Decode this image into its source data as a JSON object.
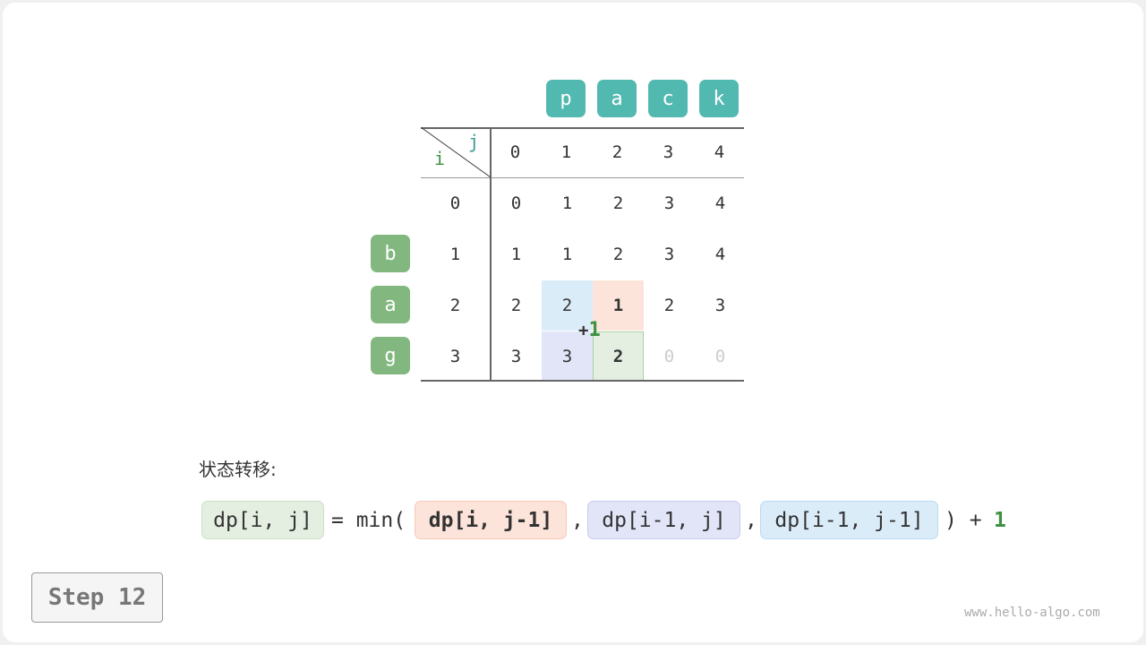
{
  "columns_string": [
    "p",
    "a",
    "c",
    "k"
  ],
  "rows_string": [
    "b",
    "a",
    "g"
  ],
  "axis_labels": {
    "i": "i",
    "j": "j"
  },
  "col_indices": [
    "0",
    "1",
    "2",
    "3",
    "4"
  ],
  "row_indices": [
    "0",
    "1",
    "2",
    "3"
  ],
  "dp": [
    [
      "0",
      "1",
      "2",
      "3",
      "4"
    ],
    [
      "1",
      "1",
      "2",
      "3",
      "4"
    ],
    [
      "2",
      "2",
      "1",
      "2",
      "3"
    ],
    [
      "3",
      "3",
      "2",
      "0",
      "0"
    ]
  ],
  "highlights": [
    {
      "row": 2,
      "col": 1,
      "role": "dp[i-1, j-1]",
      "color": "#dbecf9"
    },
    {
      "row": 2,
      "col": 2,
      "role": "dp[i, j-1]",
      "color": "#fde4da",
      "bold": true
    },
    {
      "row": 3,
      "col": 1,
      "role": "dp[i-1, j]",
      "color": "#e2e5f8"
    },
    {
      "row": 3,
      "col": 2,
      "role": "dp[i, j]",
      "color": "#e4efe2",
      "bold": true,
      "border": "#a6d3a2"
    }
  ],
  "unfilled_cells": [
    [
      3,
      3
    ],
    [
      3,
      4
    ]
  ],
  "plus_one": {
    "plus": "+",
    "one": "1"
  },
  "section_title": "状态转移:",
  "formula": {
    "target": "dp[i, j]",
    "eq_min": "= min(",
    "term1": "dp[i, j-1]",
    "comma1": ",",
    "term2": "dp[i-1, j]",
    "comma2": ",",
    "term3": "dp[i-1, j-1]",
    "close_plus": ") +",
    "one": "1"
  },
  "step_label": "Step 12",
  "watermark": "www.hello-algo.com",
  "colors": {
    "teal": "#52b9b0",
    "green": "#82b880",
    "accent_green": "#3f9142"
  }
}
